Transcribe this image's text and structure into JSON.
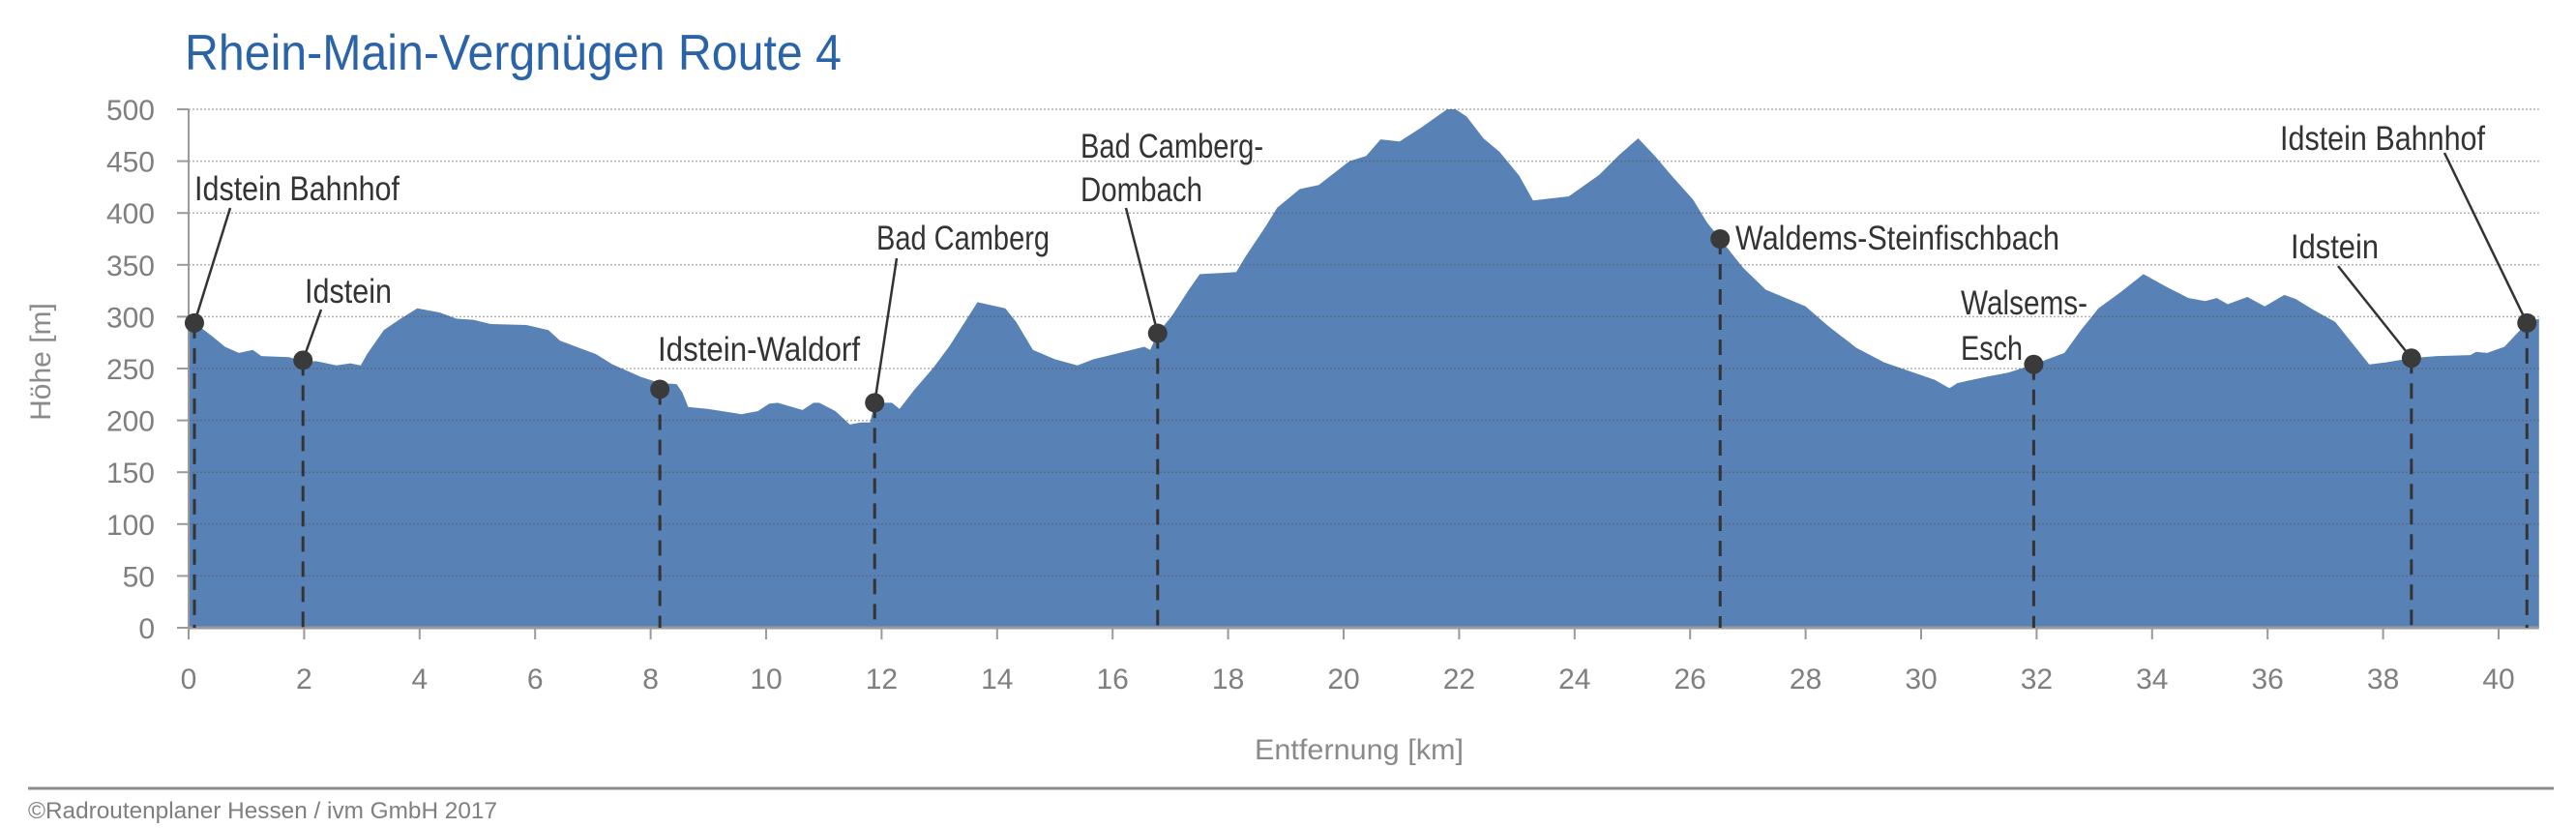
{
  "footer": {
    "copyright": "©Radroutenplaner Hessen / ivm GmbH 2017"
  },
  "colors": {
    "title": "#2b63a8",
    "area": "#5882b6",
    "marker": "#3a3a3a",
    "axis_text": "#7f7f7f"
  },
  "chart_data": {
    "type": "area",
    "title": "Rhein-Main-Vergnügen Route 4",
    "xlabel": "Entfernung [km]",
    "ylabel": "Höhe [m]",
    "xlim": [
      0,
      40.7
    ],
    "ylim": [
      0,
      500
    ],
    "grid": true,
    "x_ticks": [
      "0",
      "2",
      "4",
      "6",
      "8",
      "10",
      "12",
      "14",
      "16",
      "18",
      "20",
      "22",
      "24",
      "26",
      "28",
      "30",
      "32",
      "34",
      "36",
      "38",
      "40"
    ],
    "y_ticks": [
      "0",
      "50",
      "100",
      "150",
      "200",
      "250",
      "300",
      "350",
      "400",
      "450",
      "500"
    ],
    "profile": {
      "x": [
        0,
        0.1,
        0.39,
        0.63,
        0.87,
        1.11,
        1.26,
        1.74,
        1.98,
        2.22,
        2.56,
        2.8,
        2.98,
        3.09,
        3.38,
        3.67,
        3.96,
        4.35,
        4.64,
        4.93,
        5.22,
        5.85,
        6.23,
        6.43,
        6.76,
        7.05,
        7.34,
        7.83,
        8.16,
        8.45,
        8.55,
        8.65,
        8.99,
        9.57,
        9.86,
        10.05,
        10.2,
        10.63,
        10.82,
        10.92,
        11.2,
        11.45,
        11.65,
        11.8,
        11.88,
        12.18,
        12.31,
        12.56,
        12.9,
        13.18,
        13.66,
        14.14,
        14.33,
        14.62,
        15.0,
        15.39,
        15.67,
        16.26,
        16.55,
        16.65,
        16.78,
        17.03,
        17.32,
        17.51,
        18.14,
        18.29,
        18.66,
        18.85,
        19.24,
        19.57,
        20.1,
        20.39,
        20.64,
        20.97,
        21.36,
        21.79,
        21.94,
        22.13,
        22.42,
        22.7,
        23.04,
        23.28,
        23.9,
        24.43,
        24.77,
        25.1,
        25.39,
        25.68,
        26.05,
        26.29,
        26.52,
        26.92,
        27.31,
        28.0,
        28.39,
        28.88,
        29.36,
        30.24,
        30.49,
        30.63,
        31.12,
        31.51,
        31.95,
        32.48,
        32.78,
        33.07,
        33.46,
        33.85,
        34.24,
        34.63,
        34.92,
        35.12,
        35.31,
        35.65,
        35.95,
        36.29,
        36.49,
        36.78,
        37.17,
        37.37,
        37.76,
        38.05,
        38.49,
        38.93,
        39.51,
        39.61,
        39.8,
        40.1,
        40.49,
        40.7
      ],
      "y": [
        296,
        294,
        282,
        271,
        265,
        268,
        262,
        261,
        257,
        257,
        253,
        255,
        253,
        264,
        287,
        298,
        308,
        304,
        298,
        297,
        293,
        292,
        287,
        277,
        270,
        264,
        254,
        242,
        236,
        235,
        227,
        213,
        211,
        206,
        209,
        216,
        217,
        210,
        217,
        217,
        209,
        196,
        198,
        198,
        217,
        217,
        211,
        229,
        251,
        272,
        314,
        308,
        295,
        268,
        259,
        253,
        259,
        267,
        271,
        268,
        284,
        301,
        326,
        341,
        343,
        357,
        388,
        405,
        423,
        427,
        450,
        455,
        471,
        469,
        483,
        500,
        500,
        493,
        472,
        459,
        436,
        412,
        416,
        437,
        456,
        472,
        455,
        436,
        413,
        391,
        375,
        347,
        326,
        310,
        291,
        270,
        256,
        239,
        231,
        236,
        242,
        246,
        254,
        265,
        288,
        308,
        324,
        341,
        329,
        318,
        315,
        318,
        312,
        319,
        310,
        321,
        317,
        307,
        295,
        281,
        254,
        256,
        260,
        262,
        263,
        266,
        265,
        271,
        294,
        298
      ]
    },
    "markers": [
      {
        "lines": [
          "Idstein Bahnhof"
        ],
        "x": 0.1,
        "y": 294
      },
      {
        "lines": [
          "Idstein"
        ],
        "x": 1.98,
        "y": 258
      },
      {
        "lines": [
          "Idstein-Waldorf"
        ],
        "x": 8.16,
        "y": 230
      },
      {
        "lines": [
          "Bad Camberg"
        ],
        "x": 11.88,
        "y": 217
      },
      {
        "lines": [
          "Bad Camberg-",
          "Dombach"
        ],
        "x": 16.78,
        "y": 284
      },
      {
        "lines": [
          "Waldems-Steinfischbach"
        ],
        "x": 26.52,
        "y": 375
      },
      {
        "lines": [
          "Walsems-",
          "Esch"
        ],
        "x": 31.95,
        "y": 254
      },
      {
        "lines": [
          "Idstein"
        ],
        "x": 38.49,
        "y": 260
      },
      {
        "lines": [
          "Idstein Bahnhof"
        ],
        "x": 40.49,
        "y": 294
      }
    ]
  }
}
